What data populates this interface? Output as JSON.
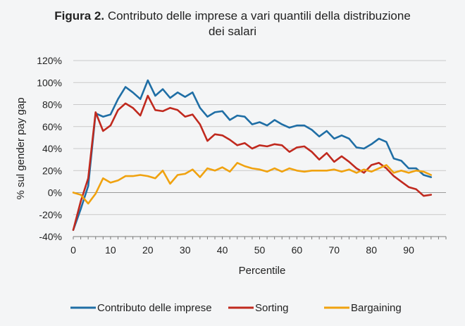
{
  "figure": {
    "title_bold": "Figura 2.",
    "title_line1": "Contributo delle imprese a vari quantili della distribuzione",
    "title_line2": "dei salari"
  },
  "chart_data": {
    "type": "line",
    "title": "Figura 2. Contributo delle imprese a vari quantili della distribuzione dei salari",
    "xlabel": "Percentile",
    "ylabel": "% sul gender pay gap",
    "xlim": [
      0,
      100
    ],
    "ylim": [
      -40,
      120
    ],
    "xticks": [
      0,
      10,
      20,
      30,
      40,
      50,
      60,
      70,
      80,
      90
    ],
    "yticks": [
      -40,
      -20,
      0,
      20,
      40,
      60,
      80,
      100,
      120
    ],
    "xtick_labels": [
      "0",
      "10",
      "20",
      "30",
      "40",
      "50",
      "60",
      "70",
      "80",
      "90"
    ],
    "ytick_labels": [
      "-40%",
      "-20%",
      "0%",
      "20%",
      "40%",
      "60%",
      "80%",
      "100%",
      "120%"
    ],
    "grid": "horizontal",
    "legend_position": "bottom",
    "x": [
      0,
      2,
      4,
      6,
      8,
      10,
      12,
      14,
      16,
      18,
      20,
      22,
      24,
      26,
      28,
      30,
      32,
      34,
      36,
      38,
      40,
      42,
      44,
      46,
      48,
      50,
      52,
      54,
      56,
      58,
      60,
      62,
      64,
      66,
      68,
      70,
      72,
      74,
      76,
      78,
      80,
      82,
      84,
      86,
      88,
      90,
      92,
      94,
      96
    ],
    "series": [
      {
        "name": "Contributo delle imprese",
        "color": "#1f6ea5",
        "values": [
          -34,
          -15,
          6,
          72,
          69,
          71,
          85,
          96,
          91,
          85,
          102,
          88,
          94,
          86,
          91,
          87,
          91,
          77,
          69,
          73,
          74,
          66,
          70,
          69,
          62,
          64,
          61,
          66,
          62,
          59,
          61,
          61,
          57,
          51,
          56,
          49,
          52,
          49,
          41,
          40,
          44,
          49,
          46,
          31,
          29,
          22,
          22,
          16,
          14
        ]
      },
      {
        "name": "Sorting",
        "color": "#c0291e",
        "values": [
          -34,
          -8,
          13,
          73,
          56,
          61,
          75,
          81,
          77,
          70,
          88,
          75,
          74,
          77,
          75,
          69,
          71,
          62,
          47,
          53,
          52,
          48,
          43,
          45,
          40,
          43,
          42,
          44,
          43,
          37,
          41,
          42,
          37,
          30,
          36,
          28,
          33,
          28,
          22,
          18,
          25,
          27,
          22,
          15,
          10,
          5,
          3,
          -3,
          -2
        ]
      },
      {
        "name": "Bargaining",
        "color": "#f0a20f",
        "values": [
          0,
          -2,
          -10,
          -1,
          13,
          9,
          11,
          15,
          15,
          16,
          15,
          13,
          20,
          8,
          16,
          17,
          21,
          14,
          22,
          20,
          23,
          19,
          27,
          24,
          22,
          21,
          19,
          22,
          19,
          22,
          20,
          19,
          20,
          20,
          20,
          21,
          19,
          21,
          18,
          21,
          19,
          22,
          25,
          18,
          20,
          18,
          20,
          19,
          16
        ]
      }
    ]
  }
}
